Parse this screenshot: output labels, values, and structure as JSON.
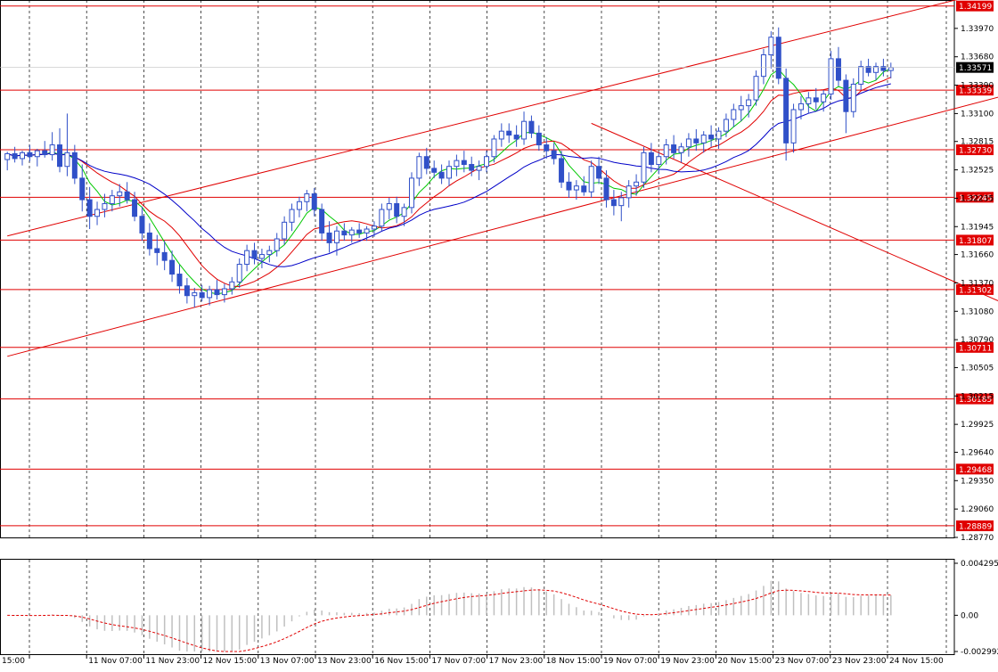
{
  "chart_data": [
    {
      "type": "candlestick",
      "symbol_hidden": true,
      "ylim": [
        1.2877,
        1.3426
      ],
      "y_ticks": [
        "1.33970",
        "1.33680",
        "1.33390",
        "1.33100",
        "1.32815",
        "1.32525",
        "1.32235",
        "1.31945",
        "1.31660",
        "1.31370",
        "1.31080",
        "1.30790",
        "1.30505",
        "1.30215",
        "1.29925",
        "1.29640",
        "1.29350",
        "1.29060",
        "1.28770"
      ],
      "x_ticks": [
        "15:00",
        "11 Nov 07:00",
        "11 Nov 23:00",
        "12 Nov 15:00",
        "13 Nov 07:00",
        "13 Nov 23:00",
        "16 Nov 15:00",
        "17 Nov 07:00",
        "17 Nov 23:00",
        "18 Nov 15:00",
        "19 Nov 07:00",
        "19 Nov 23:00",
        "20 Nov 15:00",
        "23 Nov 07:00",
        "23 Nov 23:00",
        "24 Nov 15:00"
      ],
      "grid": true,
      "current_price": "1.33571",
      "levels": [
        {
          "value": 1.34199,
          "label": "1.34199"
        },
        {
          "value": 1.33339,
          "label": "1.33339"
        },
        {
          "value": 1.3273,
          "label": "1.32730"
        },
        {
          "value": 1.32245,
          "label": "1.32245"
        },
        {
          "value": 1.31807,
          "label": "1.31807"
        },
        {
          "value": 1.31302,
          "label": "1.31302"
        },
        {
          "value": 1.30711,
          "label": "1.30711"
        },
        {
          "value": 1.30185,
          "label": "1.30185"
        },
        {
          "value": 1.29468,
          "label": "1.29468"
        },
        {
          "value": 1.28889,
          "label": "1.28889"
        }
      ],
      "trendlines": [
        {
          "name": "upper-channel",
          "from": [
            0,
            1.3185
          ],
          "to": [
            155,
            1.348
          ]
        },
        {
          "name": "lower-channel",
          "from": [
            0,
            1.3062
          ],
          "to": [
            170,
            1.3402
          ]
        },
        {
          "name": "descending",
          "from": [
            78,
            1.33
          ],
          "to": [
            170,
            1.2993
          ]
        }
      ],
      "candles": [
        [
          1.3263,
          1.3271,
          1.3252,
          1.3269
        ],
        [
          1.3269,
          1.3276,
          1.326,
          1.3264
        ],
        [
          1.3264,
          1.3272,
          1.3257,
          1.327
        ],
        [
          1.327,
          1.3278,
          1.3261,
          1.3266
        ],
        [
          1.3266,
          1.3274,
          1.3256,
          1.3272
        ],
        [
          1.3272,
          1.3282,
          1.3265,
          1.3268
        ],
        [
          1.3268,
          1.3291,
          1.3262,
          1.3278
        ],
        [
          1.3278,
          1.3295,
          1.325,
          1.3256
        ],
        [
          1.3256,
          1.331,
          1.3246,
          1.327
        ],
        [
          1.327,
          1.3278,
          1.3238,
          1.3244
        ],
        [
          1.3244,
          1.3258,
          1.321,
          1.3222
        ],
        [
          1.3222,
          1.3235,
          1.3192,
          1.3205
        ],
        [
          1.3205,
          1.322,
          1.3196,
          1.3212
        ],
        [
          1.3212,
          1.3228,
          1.3204,
          1.3218
        ],
        [
          1.3218,
          1.3232,
          1.321,
          1.3226
        ],
        [
          1.3226,
          1.3238,
          1.3215,
          1.323
        ],
        [
          1.323,
          1.324,
          1.3218,
          1.3222
        ],
        [
          1.3222,
          1.323,
          1.32,
          1.3205
        ],
        [
          1.3205,
          1.3215,
          1.318,
          1.3188
        ],
        [
          1.3188,
          1.3198,
          1.3165,
          1.3172
        ],
        [
          1.3172,
          1.3186,
          1.3155,
          1.3168
        ],
        [
          1.3168,
          1.318,
          1.315,
          1.316
        ],
        [
          1.316,
          1.317,
          1.3138,
          1.3146
        ],
        [
          1.3146,
          1.3156,
          1.3126,
          1.3134
        ],
        [
          1.3134,
          1.3142,
          1.3116,
          1.3124
        ],
        [
          1.3124,
          1.3132,
          1.3112,
          1.3127
        ],
        [
          1.3127,
          1.3135,
          1.3118,
          1.3122
        ],
        [
          1.3122,
          1.3134,
          1.3114,
          1.313
        ],
        [
          1.313,
          1.314,
          1.312,
          1.3125
        ],
        [
          1.3125,
          1.3136,
          1.3117,
          1.3131
        ],
        [
          1.3131,
          1.3143,
          1.3125,
          1.3138
        ],
        [
          1.3138,
          1.3162,
          1.3132,
          1.3156
        ],
        [
          1.3156,
          1.3176,
          1.3149,
          1.317
        ],
        [
          1.317,
          1.3178,
          1.3156,
          1.3162
        ],
        [
          1.3162,
          1.3172,
          1.3152,
          1.3166
        ],
        [
          1.3166,
          1.3175,
          1.3158,
          1.317
        ],
        [
          1.317,
          1.3188,
          1.3164,
          1.3182
        ],
        [
          1.3182,
          1.3205,
          1.3176,
          1.3199
        ],
        [
          1.3199,
          1.3218,
          1.319,
          1.3212
        ],
        [
          1.3212,
          1.3225,
          1.3204,
          1.322
        ],
        [
          1.322,
          1.3232,
          1.321,
          1.3228
        ],
        [
          1.3228,
          1.3234,
          1.3205,
          1.3212
        ],
        [
          1.3212,
          1.3218,
          1.318,
          1.3188
        ],
        [
          1.3188,
          1.32,
          1.3168,
          1.3178
        ],
        [
          1.3178,
          1.3195,
          1.3165,
          1.319
        ],
        [
          1.319,
          1.3198,
          1.318,
          1.3186
        ],
        [
          1.3186,
          1.3194,
          1.3178,
          1.3191
        ],
        [
          1.3191,
          1.3198,
          1.3183,
          1.3188
        ],
        [
          1.3188,
          1.3195,
          1.318,
          1.3192
        ],
        [
          1.3192,
          1.32,
          1.3184,
          1.3195
        ],
        [
          1.3195,
          1.3218,
          1.319,
          1.3212
        ],
        [
          1.3212,
          1.3224,
          1.3202,
          1.3218
        ],
        [
          1.3218,
          1.3225,
          1.3198,
          1.3205
        ],
        [
          1.3205,
          1.3218,
          1.3195,
          1.3214
        ],
        [
          1.3214,
          1.325,
          1.3208,
          1.3244
        ],
        [
          1.3244,
          1.327,
          1.3236,
          1.3266
        ],
        [
          1.3266,
          1.3275,
          1.3248,
          1.3254
        ],
        [
          1.3254,
          1.3262,
          1.3244,
          1.325
        ],
        [
          1.325,
          1.3258,
          1.3238,
          1.3244
        ],
        [
          1.3244,
          1.3262,
          1.3236,
          1.3256
        ],
        [
          1.3256,
          1.3268,
          1.3246,
          1.3262
        ],
        [
          1.3262,
          1.3272,
          1.325,
          1.3258
        ],
        [
          1.3258,
          1.3266,
          1.3246,
          1.3252
        ],
        [
          1.3252,
          1.3262,
          1.3242,
          1.3256
        ],
        [
          1.3256,
          1.3272,
          1.325,
          1.3266
        ],
        [
          1.3266,
          1.3288,
          1.326,
          1.3284
        ],
        [
          1.3284,
          1.33,
          1.3276,
          1.3292
        ],
        [
          1.3292,
          1.33,
          1.328,
          1.3288
        ],
        [
          1.3288,
          1.3298,
          1.3276,
          1.3284
        ],
        [
          1.3284,
          1.3312,
          1.3278,
          1.3302
        ],
        [
          1.3302,
          1.3308,
          1.3285,
          1.329
        ],
        [
          1.329,
          1.3298,
          1.3272,
          1.3278
        ],
        [
          1.3278,
          1.3286,
          1.3264,
          1.3272
        ],
        [
          1.3272,
          1.328,
          1.3258,
          1.3264
        ],
        [
          1.3264,
          1.3272,
          1.3234,
          1.324
        ],
        [
          1.324,
          1.325,
          1.3224,
          1.3232
        ],
        [
          1.3232,
          1.3242,
          1.3222,
          1.3236
        ],
        [
          1.3236,
          1.3246,
          1.3226,
          1.323
        ],
        [
          1.323,
          1.3262,
          1.3224,
          1.3256
        ],
        [
          1.3256,
          1.3266,
          1.3238,
          1.3244
        ],
        [
          1.3244,
          1.3252,
          1.3214,
          1.3222
        ],
        [
          1.3222,
          1.3232,
          1.3206,
          1.3216
        ],
        [
          1.3216,
          1.323,
          1.32,
          1.3224
        ],
        [
          1.3224,
          1.3242,
          1.3214,
          1.3236
        ],
        [
          1.3236,
          1.3248,
          1.3226,
          1.324
        ],
        [
          1.324,
          1.3276,
          1.3234,
          1.327
        ],
        [
          1.327,
          1.328,
          1.325,
          1.3258
        ],
        [
          1.3258,
          1.327,
          1.3248,
          1.3266
        ],
        [
          1.3266,
          1.3284,
          1.3258,
          1.3278
        ],
        [
          1.3278,
          1.3288,
          1.3264,
          1.327
        ],
        [
          1.327,
          1.328,
          1.326,
          1.3276
        ],
        [
          1.3276,
          1.329,
          1.3266,
          1.3284
        ],
        [
          1.3284,
          1.3294,
          1.3272,
          1.328
        ],
        [
          1.328,
          1.3292,
          1.327,
          1.3288
        ],
        [
          1.3288,
          1.3298,
          1.3276,
          1.3284
        ],
        [
          1.3284,
          1.3296,
          1.3274,
          1.3292
        ],
        [
          1.3292,
          1.331,
          1.3286,
          1.3304
        ],
        [
          1.3304,
          1.332,
          1.3296,
          1.3314
        ],
        [
          1.3314,
          1.3328,
          1.3302,
          1.3318
        ],
        [
          1.3318,
          1.333,
          1.3306,
          1.3324
        ],
        [
          1.3324,
          1.3354,
          1.3318,
          1.3348
        ],
        [
          1.3348,
          1.3376,
          1.334,
          1.337
        ],
        [
          1.337,
          1.3394,
          1.3356,
          1.3388
        ],
        [
          1.3388,
          1.3398,
          1.334,
          1.3346
        ],
        [
          1.3346,
          1.3356,
          1.3262,
          1.328
        ],
        [
          1.328,
          1.332,
          1.327,
          1.3314
        ],
        [
          1.3314,
          1.3328,
          1.3304,
          1.332
        ],
        [
          1.332,
          1.3332,
          1.331,
          1.3326
        ],
        [
          1.3326,
          1.3336,
          1.3314,
          1.3322
        ],
        [
          1.3322,
          1.3334,
          1.3312,
          1.333
        ],
        [
          1.333,
          1.3374,
          1.3324,
          1.3366
        ],
        [
          1.3366,
          1.3378,
          1.3338,
          1.3344
        ],
        [
          1.3344,
          1.335,
          1.329,
          1.3312
        ],
        [
          1.3312,
          1.3346,
          1.3306,
          1.334
        ],
        [
          1.334,
          1.3364,
          1.3334,
          1.3358
        ],
        [
          1.3358,
          1.3366,
          1.3348,
          1.3352
        ],
        [
          1.3352,
          1.3362,
          1.3344,
          1.3358
        ],
        [
          1.3358,
          1.3366,
          1.3348,
          1.3354
        ],
        [
          1.3354,
          1.3362,
          1.3346,
          1.3357
        ]
      ],
      "ma_lines": [
        {
          "name": "fast",
          "color": "#00c800",
          "period": 5
        },
        {
          "name": "medium",
          "color": "#e00000",
          "period": 10
        },
        {
          "name": "slow",
          "color": "#0000c8",
          "period": 20
        }
      ],
      "oscillator": {
        "type": "histogram-with-signal",
        "y_ticks": [
          "0.004295",
          "0.00",
          "-0.002992"
        ],
        "ylim": [
          -0.002992,
          0.004295
        ],
        "histogram_color": "#c0c0c0",
        "signal_color": "#e00000"
      }
    }
  ],
  "colors": {
    "candle_up": "#3050c8",
    "candle_down": "#3050c8",
    "level_line": "#e00000",
    "level_label_bg": "#e00000",
    "price_label_bg": "#000000",
    "grid": "#000000"
  }
}
